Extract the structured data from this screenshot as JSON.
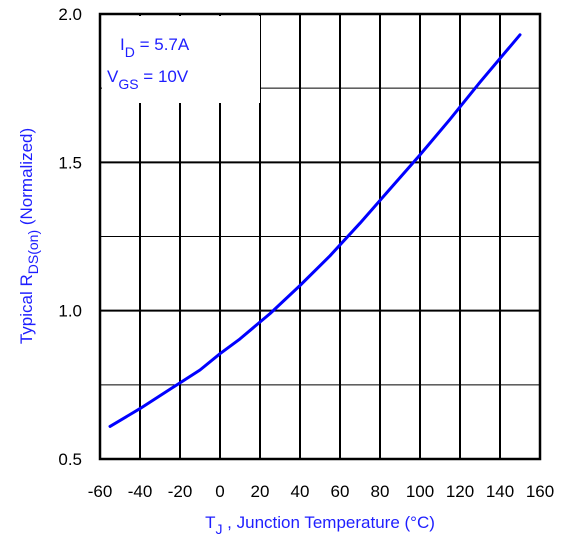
{
  "chart_data": {
    "type": "line",
    "title": "",
    "xlabel": {
      "main": "T",
      "sub": "J",
      "rest": " , Junction Temperature (°C)"
    },
    "ylabel": {
      "pre": "Typical R",
      "sub": "DS(on)",
      "post": " (Normalized)"
    },
    "xlim": [
      -60,
      160
    ],
    "ylim": [
      0.5,
      2.0
    ],
    "x_ticks": [
      -60,
      -40,
      -20,
      0,
      20,
      40,
      60,
      80,
      100,
      120,
      140,
      160
    ],
    "x_tick_labels": [
      "-60",
      "-40",
      "-20",
      "0",
      "20",
      "40",
      "60",
      "80",
      "100",
      "120",
      "140",
      "160"
    ],
    "y_ticks": [
      0.5,
      1.0,
      1.5,
      2.0
    ],
    "y_tick_labels": [
      "0.5",
      "1.0",
      "1.5",
      "2.0"
    ],
    "y_minor_gridlines": [
      0.75,
      1.25,
      1.75
    ],
    "grid": true,
    "annotation": {
      "line1": {
        "main": "I",
        "sub": "D",
        "rest": " = 5.7A"
      },
      "line2": {
        "main": "V",
        "sub": "GS",
        "rest": " = 10V"
      }
    },
    "series": [
      {
        "x": [
          -55,
          -40,
          -25,
          -10,
          0,
          10,
          25,
          40,
          55,
          70,
          85,
          100,
          115,
          130,
          150
        ],
        "y": [
          0.61,
          0.67,
          0.735,
          0.8,
          0.855,
          0.905,
          0.99,
          1.085,
          1.185,
          1.295,
          1.41,
          1.525,
          1.645,
          1.77,
          1.93
        ],
        "color": "#0000ff"
      }
    ],
    "colors": {
      "line": "#0000ff",
      "axis_text": "#1e1eff",
      "grid": "#000000"
    }
  }
}
